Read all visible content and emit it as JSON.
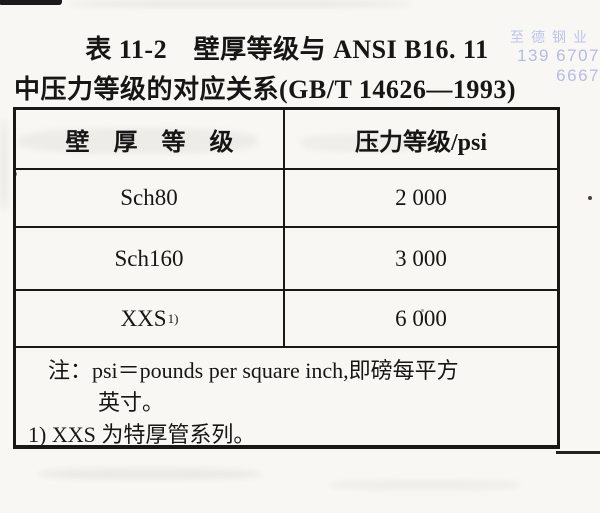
{
  "title": {
    "line1": "表 11-2　壁厚等级与 ANSI B16. 11",
    "line2": "中压力等级的对应关系(GB/T 14626—1993)"
  },
  "watermark": {
    "company": "至德钢业",
    "phone": "139 6707 6667",
    "company_color": "#bcc4ec",
    "phone_color": "#b4bce8"
  },
  "table": {
    "headers": [
      "壁　厚　等　级",
      "压力等级/psi"
    ],
    "rows": [
      {
        "grade": "Sch80",
        "grade_sup": "",
        "pressure": "2 000"
      },
      {
        "grade": "Sch160",
        "grade_sup": "",
        "pressure": "3 000"
      },
      {
        "grade": "XXS",
        "grade_sup": "1)",
        "pressure": "6 000"
      }
    ],
    "notes": [
      "注：psi＝pounds per square inch,即磅每平方",
      "英寸。",
      "1) XXS 为特厚管系列。"
    ]
  }
}
